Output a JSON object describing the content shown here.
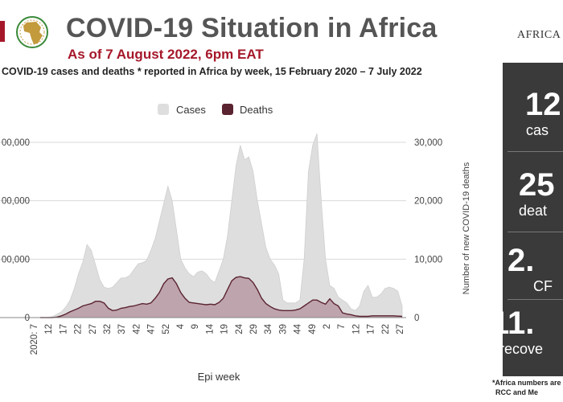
{
  "header": {
    "title": "COVID-19 Situation in Africa",
    "subtitle": "As of 7 August 2022, 6pm EAT",
    "brand": "AFRICA"
  },
  "stats": [
    {
      "value": "12",
      "label": "cas"
    },
    {
      "value": "25",
      "label": "deat"
    },
    {
      "value": "2.",
      "label": "CF"
    },
    {
      "value": "11.",
      "label": "recove"
    }
  ],
  "footnote": {
    "line1": "*Africa numbers are",
    "line2": "RCC and Me"
  },
  "chart_data": {
    "type": "area",
    "caption": "COVID-19 cases and deaths * reported in Africa by week, 15 February 2020 – 7 July 2022",
    "xlabel": "Epi week",
    "ylabel_left": "",
    "ylabel_right": "Number of new COVID-19 deaths",
    "legend": [
      "Cases",
      "Deaths"
    ],
    "legend_position": "top",
    "colors": {
      "cases": "#dedede",
      "deaths": "#b89aa4",
      "deaths_line": "#5a2330",
      "grid": "#d9d9d9"
    },
    "y_left_ticks": [
      "0",
      "00,000",
      "00,000",
      "00,000"
    ],
    "y_right_ticks": [
      "0",
      "10,000",
      "20,000",
      "30,000"
    ],
    "y_right_range": [
      0,
      30000
    ],
    "x_ticks": [
      "2020: 7",
      "12",
      "17",
      "22",
      "27",
      "32",
      "37",
      "42",
      "47",
      "52",
      "4",
      "9",
      "14",
      "19",
      "24",
      "29",
      "34",
      "39",
      "44",
      "49",
      "2",
      "7",
      "12",
      "17",
      "22",
      "27"
    ],
    "series": [
      {
        "name": "Cases",
        "values_right_scale": [
          0,
          0,
          50,
          200,
          600,
          1000,
          1800,
          3000,
          5000,
          7500,
          9500,
          12500,
          11500,
          9000,
          6500,
          5200,
          5000,
          5200,
          6000,
          6800,
          6800,
          7200,
          8200,
          9200,
          9400,
          9800,
          11500,
          13500,
          16500,
          19500,
          22500,
          20000,
          15000,
          10000,
          8500,
          7500,
          7000,
          7800,
          8000,
          7500,
          6500,
          6000,
          8000,
          10000,
          14000,
          20000,
          26000,
          29500,
          27000,
          27500,
          25000,
          20000,
          16000,
          12000,
          10000,
          9000,
          7500,
          3000,
          2500,
          2500,
          2500,
          3000,
          10000,
          25000,
          29500,
          31500,
          20000,
          10000,
          5500,
          5000,
          3500,
          3000,
          2500,
          1500,
          1200,
          2000,
          4500,
          5500,
          3500,
          3500,
          4000,
          5000,
          5200,
          5000,
          4500,
          2000
        ]
      },
      {
        "name": "Deaths",
        "values_right_scale": [
          0,
          0,
          0,
          0,
          100,
          300,
          600,
          1000,
          1300,
          1600,
          2000,
          2200,
          2400,
          2800,
          2800,
          2500,
          1600,
          1200,
          1300,
          1600,
          1700,
          1900,
          2000,
          2200,
          2400,
          2300,
          2500,
          3300,
          4300,
          5800,
          6600,
          6800,
          5800,
          4300,
          3300,
          2600,
          2500,
          2400,
          2300,
          2200,
          2300,
          2200,
          2600,
          3300,
          4800,
          6300,
          6900,
          7000,
          6800,
          6700,
          6000,
          4800,
          3300,
          2400,
          1900,
          1500,
          1300,
          1200,
          1200,
          1200,
          1300,
          1500,
          2000,
          2500,
          3000,
          3000,
          2600,
          2300,
          3200,
          2400,
          2000,
          800,
          600,
          500,
          300,
          200,
          200,
          200,
          300,
          300,
          300,
          300,
          300,
          300,
          250,
          200
        ]
      }
    ]
  }
}
